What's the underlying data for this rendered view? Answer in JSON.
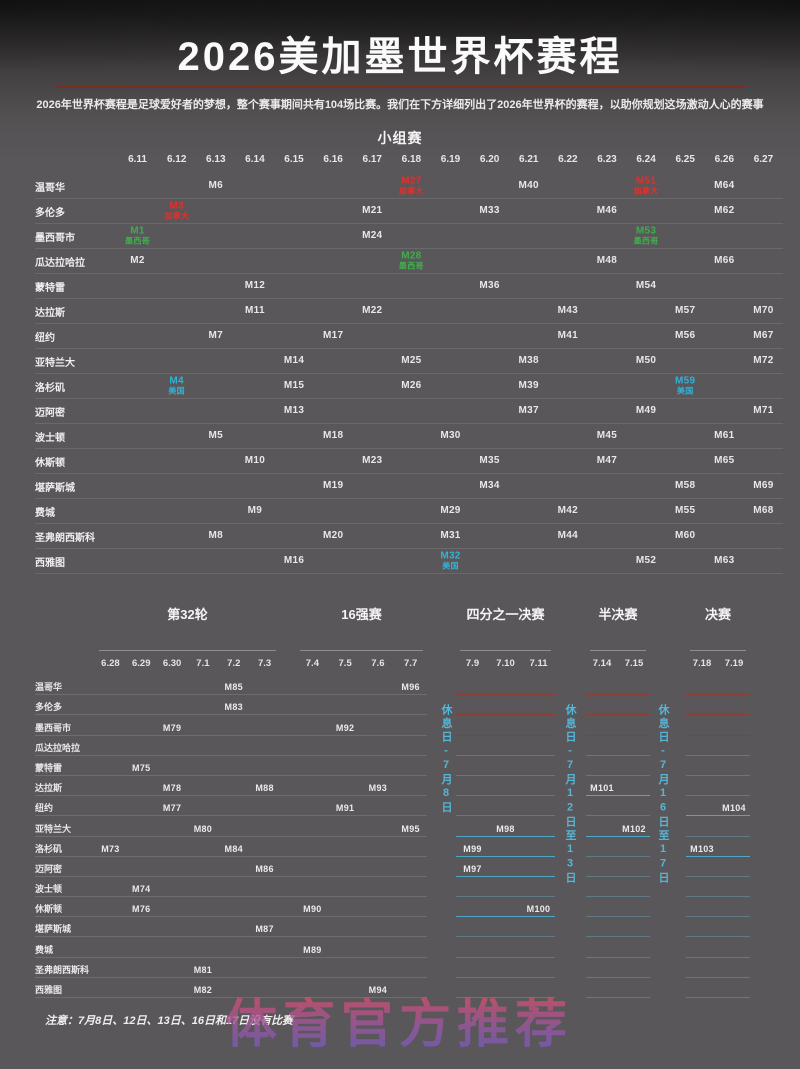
{
  "header": {
    "title": "2026美加墨世界杯赛程",
    "subtitle": "2026年世界杯赛程是足球爱好者的梦想，整个赛事期间共有104场比赛。我们在下方详细列出了2026年世界杯的赛程，以助你规划这场激动人心的赛事",
    "underline_color": "#7d2d1d"
  },
  "legend_colors": {
    "mexico_green": "#3fae4c",
    "usa_cyan": "#32b2d6",
    "canada_red": "#d23430",
    "rest_day_cyan": "#55b5d6"
  },
  "group_stage": {
    "title": "小组赛",
    "dates": [
      "6.11",
      "6.12",
      "6.13",
      "6.14",
      "6.15",
      "6.16",
      "6.17",
      "6.18",
      "6.19",
      "6.20",
      "6.21",
      "6.22",
      "6.23",
      "6.24",
      "6.25",
      "6.26",
      "6.27"
    ],
    "rows": [
      {
        "city": "温哥华",
        "matches": [
          {
            "date": "6.13",
            "match": "M6"
          },
          {
            "date": "6.18",
            "match": "M27",
            "team": "加拿大",
            "color": "red"
          },
          {
            "date": "6.21",
            "match": "M40"
          },
          {
            "date": "6.24",
            "match": "M51",
            "team": "加拿大",
            "color": "red"
          },
          {
            "date": "6.26",
            "match": "M64"
          }
        ]
      },
      {
        "city": "多伦多",
        "matches": [
          {
            "date": "6.12",
            "match": "M3",
            "team": "加拿大",
            "color": "red"
          },
          {
            "date": "6.17",
            "match": "M21"
          },
          {
            "date": "6.20",
            "match": "M33"
          },
          {
            "date": "6.23",
            "match": "M46"
          },
          {
            "date": "6.26",
            "match": "M62"
          }
        ]
      },
      {
        "city": "墨西哥市",
        "matches": [
          {
            "date": "6.11",
            "match": "M1",
            "team": "墨西哥",
            "color": "green"
          },
          {
            "date": "6.17",
            "match": "M24"
          },
          {
            "date": "6.24",
            "match": "M53",
            "team": "墨西哥",
            "color": "green"
          }
        ]
      },
      {
        "city": "瓜达拉哈拉",
        "matches": [
          {
            "date": "6.11",
            "match": "M2"
          },
          {
            "date": "6.18",
            "match": "M28",
            "team": "墨西哥",
            "color": "green"
          },
          {
            "date": "6.23",
            "match": "M48"
          },
          {
            "date": "6.26",
            "match": "M66"
          }
        ]
      },
      {
        "city": "蒙特雷",
        "matches": [
          {
            "date": "6.14",
            "match": "M12"
          },
          {
            "date": "6.20",
            "match": "M36"
          },
          {
            "date": "6.24",
            "match": "M54"
          }
        ]
      },
      {
        "city": "达拉斯",
        "matches": [
          {
            "date": "6.14",
            "match": "M11"
          },
          {
            "date": "6.17",
            "match": "M22"
          },
          {
            "date": "6.22",
            "match": "M43"
          },
          {
            "date": "6.25",
            "match": "M57"
          },
          {
            "date": "6.27",
            "match": "M70"
          }
        ]
      },
      {
        "city": "纽约",
        "matches": [
          {
            "date": "6.13",
            "match": "M7"
          },
          {
            "date": "6.16",
            "match": "M17"
          },
          {
            "date": "6.22",
            "match": "M41"
          },
          {
            "date": "6.25",
            "match": "M56"
          },
          {
            "date": "6.27",
            "match": "M67"
          }
        ]
      },
      {
        "city": "亚特兰大",
        "matches": [
          {
            "date": "6.15",
            "match": "M14"
          },
          {
            "date": "6.18",
            "match": "M25"
          },
          {
            "date": "6.21",
            "match": "M38"
          },
          {
            "date": "6.24",
            "match": "M50"
          },
          {
            "date": "6.27",
            "match": "M72"
          }
        ]
      },
      {
        "city": "洛杉矶",
        "matches": [
          {
            "date": "6.12",
            "match": "M4",
            "team": "美国",
            "color": "cyan"
          },
          {
            "date": "6.15",
            "match": "M15"
          },
          {
            "date": "6.18",
            "match": "M26"
          },
          {
            "date": "6.21",
            "match": "M39"
          },
          {
            "date": "6.25",
            "match": "M59",
            "team": "美国",
            "color": "cyan"
          }
        ]
      },
      {
        "city": "迈阿密",
        "matches": [
          {
            "date": "6.15",
            "match": "M13"
          },
          {
            "date": "6.21",
            "match": "M37"
          },
          {
            "date": "6.24",
            "match": "M49"
          },
          {
            "date": "6.27",
            "match": "M71"
          }
        ]
      },
      {
        "city": "波士顿",
        "matches": [
          {
            "date": "6.13",
            "match": "M5"
          },
          {
            "date": "6.16",
            "match": "M18"
          },
          {
            "date": "6.19",
            "match": "M30"
          },
          {
            "date": "6.23",
            "match": "M45"
          },
          {
            "date": "6.26",
            "match": "M61"
          }
        ]
      },
      {
        "city": "休斯顿",
        "matches": [
          {
            "date": "6.14",
            "match": "M10"
          },
          {
            "date": "6.17",
            "match": "M23"
          },
          {
            "date": "6.20",
            "match": "M35"
          },
          {
            "date": "6.23",
            "match": "M47"
          },
          {
            "date": "6.26",
            "match": "M65"
          }
        ]
      },
      {
        "city": "堪萨斯城",
        "matches": [
          {
            "date": "6.16",
            "match": "M19"
          },
          {
            "date": "6.20",
            "match": "M34"
          },
          {
            "date": "6.25",
            "match": "M58"
          },
          {
            "date": "6.27",
            "match": "M69"
          }
        ]
      },
      {
        "city": "费城",
        "matches": [
          {
            "date": "6.14",
            "match": "M9"
          },
          {
            "date": "6.19",
            "match": "M29"
          },
          {
            "date": "6.22",
            "match": "M42"
          },
          {
            "date": "6.25",
            "match": "M55"
          },
          {
            "date": "6.27",
            "match": "M68"
          }
        ]
      },
      {
        "city": "圣弗朗西斯科",
        "matches": [
          {
            "date": "6.13",
            "match": "M8"
          },
          {
            "date": "6.16",
            "match": "M20"
          },
          {
            "date": "6.19",
            "match": "M31"
          },
          {
            "date": "6.22",
            "match": "M44"
          },
          {
            "date": "6.25",
            "match": "M60"
          }
        ]
      },
      {
        "city": "西雅图",
        "matches": [
          {
            "date": "6.15",
            "match": "M16"
          },
          {
            "date": "6.19",
            "match": "M32",
            "team": "美国",
            "color": "cyan"
          },
          {
            "date": "6.24",
            "match": "M52"
          },
          {
            "date": "6.26",
            "match": "M63"
          }
        ]
      }
    ]
  },
  "knockout": {
    "sections": [
      {
        "name": "第32轮",
        "dates": [
          "6.28",
          "6.29",
          "6.30",
          "7.1",
          "7.2",
          "7.3"
        ]
      },
      {
        "name": "16强赛",
        "dates": [
          "7.4",
          "7.5",
          "7.6",
          "7.7"
        ]
      },
      {
        "name": "四分之一决赛",
        "dates": [
          "7.9",
          "7.10",
          "7.11"
        ]
      },
      {
        "name": "半决赛",
        "dates": [
          "7.14",
          "7.15"
        ]
      },
      {
        "name": "决赛",
        "dates": [
          "7.18",
          "7.19"
        ]
      }
    ],
    "rest_days": [
      "休息日-7月8日",
      "休息日-7月12日至13日",
      "休息日-7月16日至17日"
    ],
    "rows": [
      {
        "city": "温哥华",
        "matches": [
          {
            "date": "7.2",
            "match": "M85"
          },
          {
            "date": "7.7",
            "match": "M96"
          }
        ]
      },
      {
        "city": "多伦多",
        "matches": [
          {
            "date": "7.2",
            "match": "M83"
          }
        ]
      },
      {
        "city": "墨西哥市",
        "matches": [
          {
            "date": "6.30",
            "match": "M79"
          },
          {
            "date": "7.5",
            "match": "M92"
          }
        ]
      },
      {
        "city": "瓜达拉哈拉",
        "matches": []
      },
      {
        "city": "蒙特雷",
        "matches": [
          {
            "date": "6.29",
            "match": "M75"
          }
        ]
      },
      {
        "city": "达拉斯",
        "matches": [
          {
            "date": "6.30",
            "match": "M78"
          },
          {
            "date": "7.3",
            "match": "M88"
          },
          {
            "date": "7.6",
            "match": "M93"
          },
          {
            "date": "7.14",
            "match": "M101"
          }
        ]
      },
      {
        "city": "纽约",
        "matches": [
          {
            "date": "6.30",
            "match": "M77"
          },
          {
            "date": "7.5",
            "match": "M91"
          },
          {
            "date": "7.19",
            "match": "M104"
          }
        ]
      },
      {
        "city": "亚特兰大",
        "matches": [
          {
            "date": "7.1",
            "match": "M80"
          },
          {
            "date": "7.7",
            "match": "M95"
          },
          {
            "date": "7.10",
            "match": "M98"
          },
          {
            "date": "7.15",
            "match": "M102"
          }
        ]
      },
      {
        "city": "洛杉矶",
        "matches": [
          {
            "date": "6.28",
            "match": "M73"
          },
          {
            "date": "7.2",
            "match": "M84"
          },
          {
            "date": "7.9",
            "match": "M99"
          },
          {
            "date": "7.18",
            "match": "M103"
          }
        ]
      },
      {
        "city": "迈阿密",
        "matches": [
          {
            "date": "7.3",
            "match": "M86"
          },
          {
            "date": "7.9",
            "match": "M97"
          }
        ]
      },
      {
        "city": "波士顿",
        "matches": [
          {
            "date": "6.29",
            "match": "M74"
          }
        ]
      },
      {
        "city": "休斯顿",
        "matches": [
          {
            "date": "6.29",
            "match": "M76"
          },
          {
            "date": "7.4",
            "match": "M90"
          },
          {
            "date": "7.11",
            "match": "M100"
          }
        ]
      },
      {
        "city": "堪萨斯城",
        "matches": [
          {
            "date": "7.3",
            "match": "M87"
          }
        ]
      },
      {
        "city": "费城",
        "matches": [
          {
            "date": "7.4",
            "match": "M89"
          }
        ]
      },
      {
        "city": "圣弗朗西斯科",
        "matches": [
          {
            "date": "7.1",
            "match": "M81"
          }
        ]
      },
      {
        "city": "西雅图",
        "matches": [
          {
            "date": "7.1",
            "match": "M82"
          },
          {
            "date": "7.6",
            "match": "M94"
          }
        ]
      }
    ]
  },
  "footer": {
    "note": "注意：7月8日、12日、13日、16日和17日没有比赛"
  },
  "watermark": {
    "text": "体育官方推荐",
    "color_top": "#d94f66",
    "color_bottom": "#6a5ec2"
  }
}
